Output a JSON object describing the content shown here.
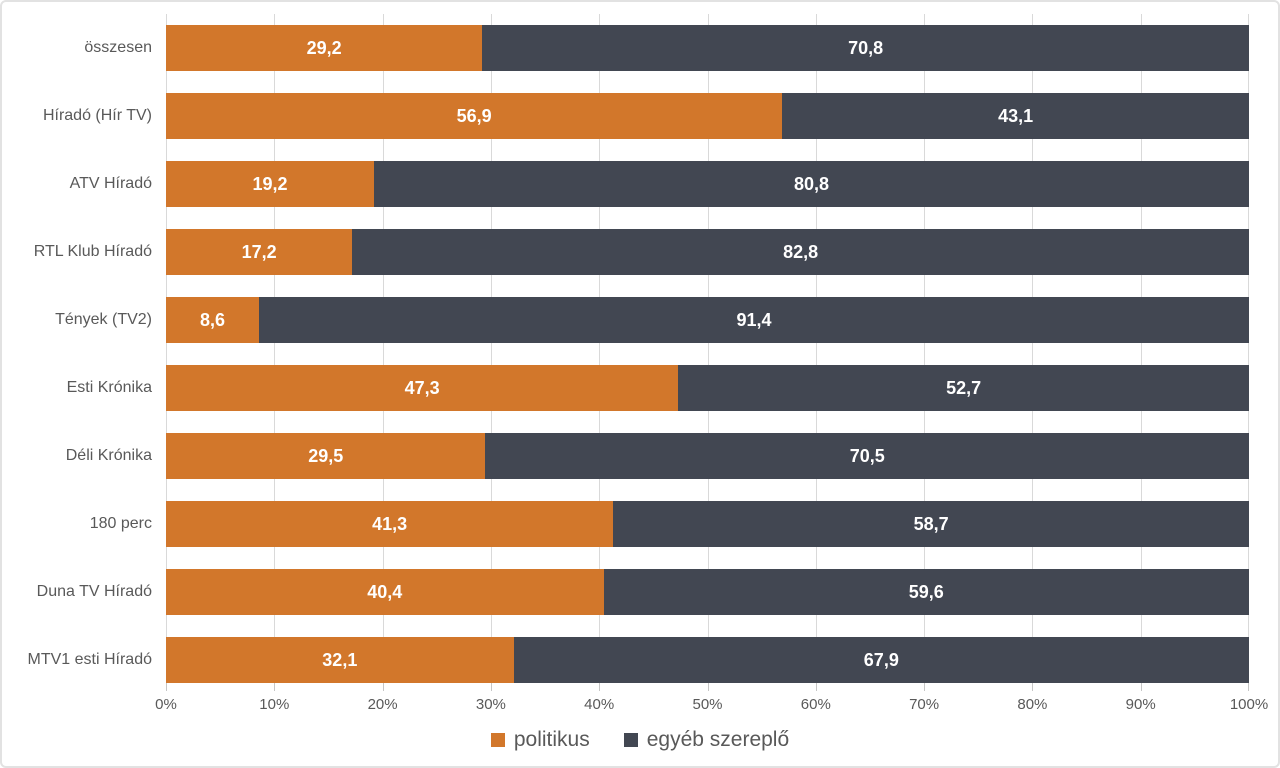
{
  "chart_data": {
    "type": "bar",
    "orientation": "horizontal",
    "stacked": true,
    "title": "",
    "categories": [
      "összesen",
      "Híradó (Hír TV)",
      "ATV Híradó",
      "RTL Klub Híradó",
      "Tények (TV2)",
      "Esti Krónika",
      "Déli Krónika",
      "180 perc",
      "Duna TV Híradó",
      "MTV1 esti Híradó"
    ],
    "series": [
      {
        "name": "politikus",
        "color": "#d2772b",
        "values": [
          29.2,
          56.9,
          19.2,
          17.2,
          8.6,
          47.3,
          29.5,
          41.3,
          40.4,
          32.1
        ],
        "labels": [
          "29,2",
          "56,9",
          "19,2",
          "17,2",
          "8,6",
          "47,3",
          "29,5",
          "41,3",
          "40,4",
          "32,1"
        ]
      },
      {
        "name": "egyéb szereplő",
        "color": "#424752",
        "values": [
          70.8,
          43.1,
          80.8,
          82.8,
          91.4,
          52.7,
          70.5,
          58.7,
          59.6,
          67.9
        ],
        "labels": [
          "70,8",
          "43,1",
          "80,8",
          "82,8",
          "91,4",
          "52,7",
          "70,5",
          "58,7",
          "59,6",
          "67,9"
        ]
      }
    ],
    "x_ticks": [
      "0%",
      "10%",
      "20%",
      "30%",
      "40%",
      "50%",
      "60%",
      "70%",
      "80%",
      "90%",
      "100%"
    ],
    "xlim": [
      0,
      100
    ],
    "grid": true,
    "gridline_color": "#d9d9d9",
    "axis_text_color": "#595959",
    "data_label_color": "#ffffff",
    "legend_position": "bottom"
  }
}
